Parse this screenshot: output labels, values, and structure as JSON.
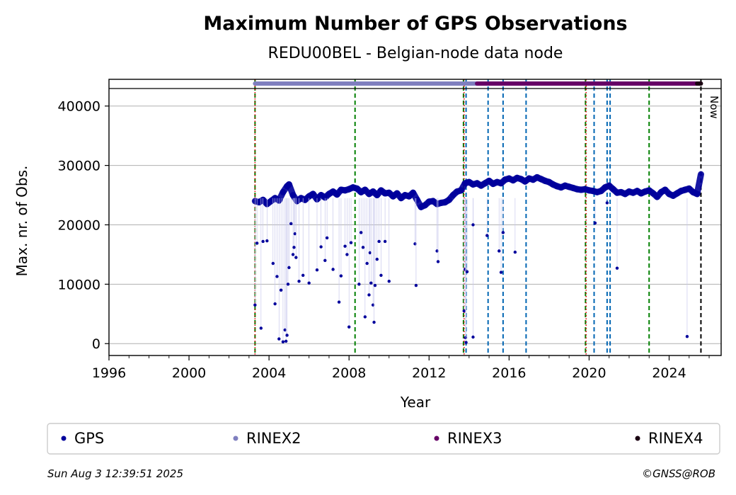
{
  "chart_data": {
    "type": "scatter",
    "title": "Maximum Number of GPS Observations",
    "subtitle": "REDU00BEL - Belgian-node data node",
    "xlabel": "Year",
    "ylabel": "Max. nr. of Obs.",
    "xlim": [
      1996,
      2026.6
    ],
    "ylim": [
      -2000,
      44500
    ],
    "x_ticks": [
      "1996",
      "2000",
      "2004",
      "2008",
      "2012",
      "2016",
      "2020",
      "2024"
    ],
    "y_ticks": [
      "0",
      "10000",
      "20000",
      "30000",
      "40000"
    ],
    "grid": "horizontal",
    "legend_placement": "below plot",
    "now_label": "Now",
    "now_x": 2025.59,
    "legend": [
      {
        "name": "GPS",
        "color": "#00009c"
      },
      {
        "name": "RINEX2",
        "color": "#7f7fbf"
      },
      {
        "name": "RINEX3",
        "color": "#660066"
      },
      {
        "name": "RINEX4",
        "color": "#1a0011"
      }
    ],
    "format_bars": [
      {
        "name": "RINEX2",
        "start": 2003.3,
        "end": 2014.4,
        "color": "#7f7fbf"
      },
      {
        "name": "RINEX3",
        "start": 2014.4,
        "end": 2025.4,
        "color": "#660066"
      },
      {
        "name": "RINEX4",
        "start": 2025.4,
        "end": 2025.59,
        "color": "#1a0011"
      }
    ],
    "event_lines": {
      "red_dotted": [
        2003.3,
        2013.75,
        2019.85
      ],
      "green_dashed": [
        2003.3,
        2008.3,
        2013.72,
        2019.82,
        2023.0
      ],
      "blue_dashed": [
        2013.85,
        2014.95,
        2015.7,
        2016.85,
        2020.25,
        2020.9,
        2021.05
      ]
    },
    "baseline_series": [
      [
        2003.3,
        24000
      ],
      [
        2003.5,
        23800
      ],
      [
        2003.7,
        24200
      ],
      [
        2003.9,
        23500
      ],
      [
        2004.1,
        24000
      ],
      [
        2004.3,
        24500
      ],
      [
        2004.5,
        24100
      ],
      [
        2004.7,
        25500
      ],
      [
        2004.9,
        26500
      ],
      [
        2005.0,
        26800
      ],
      [
        2005.2,
        25000
      ],
      [
        2005.4,
        24000
      ],
      [
        2005.6,
        24500
      ],
      [
        2005.8,
        24200
      ],
      [
        2006.0,
        24800
      ],
      [
        2006.2,
        25200
      ],
      [
        2006.4,
        24300
      ],
      [
        2006.6,
        25000
      ],
      [
        2006.8,
        24600
      ],
      [
        2007.0,
        25200
      ],
      [
        2007.2,
        25600
      ],
      [
        2007.4,
        25100
      ],
      [
        2007.6,
        25900
      ],
      [
        2007.8,
        25800
      ],
      [
        2008.0,
        26000
      ],
      [
        2008.2,
        26300
      ],
      [
        2008.4,
        26100
      ],
      [
        2008.6,
        25500
      ],
      [
        2008.8,
        25900
      ],
      [
        2009.0,
        25200
      ],
      [
        2009.2,
        25600
      ],
      [
        2009.4,
        25000
      ],
      [
        2009.6,
        25800
      ],
      [
        2009.8,
        25300
      ],
      [
        2010.0,
        25400
      ],
      [
        2010.2,
        24800
      ],
      [
        2010.4,
        25300
      ],
      [
        2010.6,
        24500
      ],
      [
        2010.8,
        25000
      ],
      [
        2011.0,
        24800
      ],
      [
        2011.2,
        25400
      ],
      [
        2011.4,
        24200
      ],
      [
        2011.6,
        23000
      ],
      [
        2011.8,
        23300
      ],
      [
        2012.0,
        23900
      ],
      [
        2012.2,
        24000
      ],
      [
        2012.4,
        23500
      ],
      [
        2012.6,
        23700
      ],
      [
        2012.8,
        23800
      ],
      [
        2013.0,
        24200
      ],
      [
        2013.2,
        25000
      ],
      [
        2013.4,
        25600
      ],
      [
        2013.6,
        25800
      ],
      [
        2013.8,
        27000
      ],
      [
        2014.0,
        27200
      ],
      [
        2014.2,
        26800
      ],
      [
        2014.4,
        27000
      ],
      [
        2014.6,
        26600
      ],
      [
        2014.8,
        27000
      ],
      [
        2015.0,
        27400
      ],
      [
        2015.2,
        26900
      ],
      [
        2015.4,
        27200
      ],
      [
        2015.6,
        27000
      ],
      [
        2015.8,
        27600
      ],
      [
        2016.0,
        27800
      ],
      [
        2016.2,
        27500
      ],
      [
        2016.4,
        27900
      ],
      [
        2016.6,
        27700
      ],
      [
        2016.8,
        27300
      ],
      [
        2017.0,
        27800
      ],
      [
        2017.2,
        27600
      ],
      [
        2017.4,
        28000
      ],
      [
        2017.6,
        27700
      ],
      [
        2017.8,
        27400
      ],
      [
        2018.0,
        27200
      ],
      [
        2018.2,
        26800
      ],
      [
        2018.4,
        26500
      ],
      [
        2018.6,
        26300
      ],
      [
        2018.8,
        26600
      ],
      [
        2019.0,
        26400
      ],
      [
        2019.2,
        26200
      ],
      [
        2019.4,
        26000
      ],
      [
        2019.6,
        25900
      ],
      [
        2019.8,
        26000
      ],
      [
        2020.0,
        25800
      ],
      [
        2020.2,
        25700
      ],
      [
        2020.4,
        25500
      ],
      [
        2020.6,
        25700
      ],
      [
        2020.8,
        26300
      ],
      [
        2021.0,
        26600
      ],
      [
        2021.2,
        26000
      ],
      [
        2021.4,
        25400
      ],
      [
        2021.6,
        25500
      ],
      [
        2021.8,
        25200
      ],
      [
        2022.0,
        25600
      ],
      [
        2022.2,
        25400
      ],
      [
        2022.4,
        25700
      ],
      [
        2022.6,
        25300
      ],
      [
        2022.8,
        25600
      ],
      [
        2023.0,
        25800
      ],
      [
        2023.2,
        25300
      ],
      [
        2023.4,
        24700
      ],
      [
        2023.6,
        25500
      ],
      [
        2023.8,
        25900
      ],
      [
        2024.0,
        25200
      ],
      [
        2024.2,
        24900
      ],
      [
        2024.4,
        25300
      ],
      [
        2024.6,
        25700
      ],
      [
        2024.8,
        25900
      ],
      [
        2025.0,
        26100
      ],
      [
        2025.2,
        25500
      ],
      [
        2025.4,
        25200
      ],
      [
        2025.59,
        28500
      ]
    ],
    "outlier_points": [
      [
        2003.3,
        6500
      ],
      [
        2003.4,
        16900
      ],
      [
        2003.6,
        2600
      ],
      [
        2003.7,
        17200
      ],
      [
        2003.9,
        17300
      ],
      [
        2004.2,
        13500
      ],
      [
        2004.3,
        6700
      ],
      [
        2004.4,
        11300
      ],
      [
        2004.5,
        800
      ],
      [
        2004.6,
        9000
      ],
      [
        2004.7,
        300
      ],
      [
        2004.8,
        2300
      ],
      [
        2004.85,
        400
      ],
      [
        2004.9,
        1400
      ],
      [
        2004.95,
        10000
      ],
      [
        2005.0,
        12800
      ],
      [
        2005.1,
        20200
      ],
      [
        2005.2,
        15000
      ],
      [
        2005.25,
        16200
      ],
      [
        2005.3,
        18500
      ],
      [
        2005.35,
        14500
      ],
      [
        2005.5,
        10500
      ],
      [
        2005.7,
        11500
      ],
      [
        2006.0,
        10200
      ],
      [
        2006.4,
        12400
      ],
      [
        2006.6,
        16300
      ],
      [
        2006.8,
        14000
      ],
      [
        2006.9,
        17800
      ],
      [
        2007.2,
        12500
      ],
      [
        2007.5,
        7000
      ],
      [
        2007.6,
        11400
      ],
      [
        2007.8,
        16400
      ],
      [
        2007.9,
        15000
      ],
      [
        2008.0,
        2800
      ],
      [
        2008.1,
        17000
      ],
      [
        2008.5,
        10000
      ],
      [
        2008.6,
        18700
      ],
      [
        2008.7,
        16200
      ],
      [
        2008.8,
        4500
      ],
      [
        2008.9,
        13500
      ],
      [
        2009.0,
        8200
      ],
      [
        2009.05,
        15300
      ],
      [
        2009.1,
        10200
      ],
      [
        2009.2,
        6500
      ],
      [
        2009.25,
        3600
      ],
      [
        2009.3,
        9800
      ],
      [
        2009.4,
        14200
      ],
      [
        2009.5,
        17200
      ],
      [
        2009.6,
        11500
      ],
      [
        2009.8,
        17200
      ],
      [
        2010.0,
        10500
      ],
      [
        2011.3,
        16800
      ],
      [
        2011.35,
        9800
      ],
      [
        2012.4,
        15600
      ],
      [
        2012.45,
        13800
      ],
      [
        2013.75,
        5500
      ],
      [
        2013.8,
        12500
      ],
      [
        2013.82,
        1000
      ],
      [
        2013.85,
        200
      ],
      [
        2013.9,
        12100
      ],
      [
        2014.2,
        1100
      ],
      [
        2014.9,
        18200
      ],
      [
        2014.2,
        20000
      ],
      [
        2015.5,
        15600
      ],
      [
        2015.6,
        12000
      ],
      [
        2015.7,
        18700
      ],
      [
        2016.3,
        15400
      ],
      [
        2020.3,
        20300
      ],
      [
        2020.9,
        23700
      ],
      [
        2021.4,
        12700
      ],
      [
        2024.9,
        1200
      ]
    ]
  },
  "footer": {
    "timestamp": "Sun Aug  3 12:39:51 2025",
    "credit": "©GNSS@ROB"
  }
}
